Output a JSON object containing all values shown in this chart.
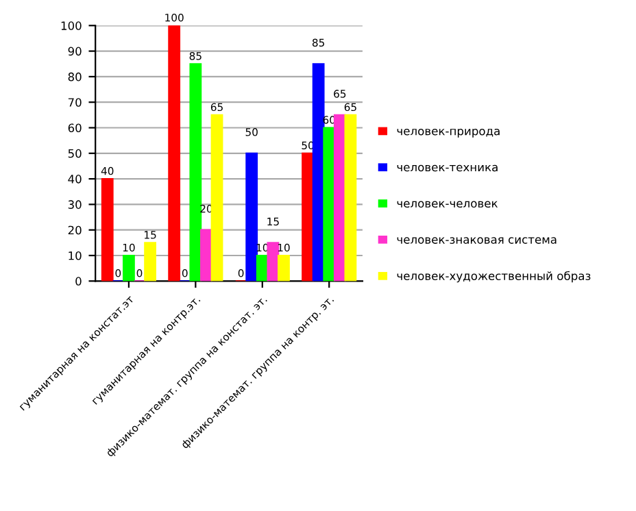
{
  "chart_data": {
    "type": "bar",
    "categories": [
      "гуманитарная на констат.эт",
      "гуманитарная на контр.эт.",
      "физико-математ. группа на констат. эт.",
      "физико-математ. группа на контр. эт."
    ],
    "series": [
      {
        "name": "человек-природа",
        "color": "#ff0000",
        "values": [
          40,
          100,
          0,
          50
        ]
      },
      {
        "name": "человек-техника",
        "color": "#0000ff",
        "values": [
          0,
          0,
          50,
          85
        ]
      },
      {
        "name": "человек-человек",
        "color": "#00ff00",
        "values": [
          10,
          85,
          10,
          60
        ]
      },
      {
        "name": "человек-знаковая система",
        "color": "#ff33cc",
        "values": [
          0,
          20,
          15,
          65
        ]
      },
      {
        "name": "человек-художественный образ",
        "color": "#ffff00",
        "values": [
          15,
          65,
          10,
          65
        ]
      }
    ],
    "ylim": [
      0,
      100
    ],
    "yticks": [
      0,
      10,
      20,
      30,
      40,
      50,
      60,
      70,
      80,
      90,
      100
    ],
    "grid": "y",
    "legend": "right",
    "data_labels": true
  }
}
